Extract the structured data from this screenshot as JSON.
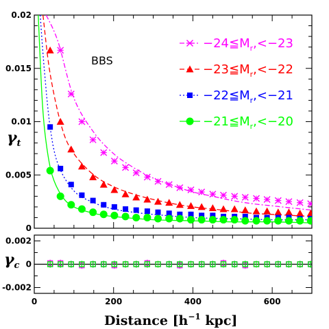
{
  "chart_data": [
    {
      "type": "line",
      "panel": "top",
      "ylabel": "γt",
      "annotation": "BBS",
      "xlim": [
        0,
        700
      ],
      "ylim": [
        0,
        0.02
      ],
      "x_ticks": [
        0,
        200,
        400,
        600
      ],
      "y_ticks": [
        0,
        0.005,
        0.01,
        0.015,
        0.02
      ],
      "y_tick_labels": [
        "0",
        "0.005",
        "0.01",
        "0.015",
        "0.02"
      ],
      "x": [
        40,
        66,
        93,
        120,
        148,
        175,
        202,
        230,
        257,
        285,
        312,
        340,
        367,
        395,
        422,
        450,
        477,
        505,
        532,
        560,
        587,
        615,
        642,
        670,
        697
      ],
      "series": [
        {
          "name": "−24≦Mr,<−23",
          "color": "#ff00ff",
          "marker": "x",
          "line": "dashdot",
          "values": [
            0.0205,
            0.0167,
            0.0126,
            0.01,
            0.0083,
            0.0071,
            0.0063,
            0.0057,
            0.0052,
            0.0048,
            0.0044,
            0.0041,
            0.0038,
            0.0036,
            0.0034,
            0.0032,
            0.0031,
            0.003,
            0.0029,
            0.0028,
            0.0027,
            0.0026,
            0.0025,
            0.0024,
            0.0023
          ],
          "model_points": [
            [
              30,
              0.02
            ],
            [
              60,
              0.0175
            ],
            [
              100,
              0.0122
            ],
            [
              150,
              0.009
            ],
            [
              200,
              0.007
            ],
            [
              250,
              0.0057
            ],
            [
              300,
              0.0047
            ],
            [
              350,
              0.004
            ],
            [
              400,
              0.0034
            ],
            [
              450,
              0.003
            ],
            [
              500,
              0.0026
            ],
            [
              550,
              0.0023
            ],
            [
              600,
              0.0021
            ],
            [
              650,
              0.0019
            ],
            [
              700,
              0.0017
            ]
          ]
        },
        {
          "name": "−23≦Mr,<−22",
          "color": "#ff0000",
          "marker": "triangle",
          "line": "dashed",
          "values": [
            0.0167,
            0.01,
            0.0074,
            0.0058,
            0.0048,
            0.0041,
            0.0036,
            0.0032,
            0.0029,
            0.0027,
            0.0025,
            0.0024,
            0.0022,
            0.0021,
            0.002,
            0.0019,
            0.0018,
            0.0018,
            0.0017,
            0.0016,
            0.0016,
            0.0015,
            0.0015,
            0.0014,
            0.0014
          ],
          "model_points": [
            [
              22,
              0.02
            ],
            [
              40,
              0.0145
            ],
            [
              70,
              0.0094
            ],
            [
              100,
              0.007
            ],
            [
              150,
              0.005
            ],
            [
              200,
              0.0039
            ],
            [
              250,
              0.0032
            ],
            [
              300,
              0.0027
            ],
            [
              350,
              0.0023
            ],
            [
              400,
              0.002
            ],
            [
              450,
              0.0018
            ],
            [
              500,
              0.0016
            ],
            [
              550,
              0.0014
            ],
            [
              600,
              0.0013
            ],
            [
              650,
              0.0012
            ],
            [
              700,
              0.0011
            ]
          ]
        },
        {
          "name": "−22≦Mr,<−21",
          "color": "#0000ff",
          "marker": "square",
          "line": "dotted",
          "values": [
            0.0095,
            0.0056,
            0.0041,
            0.0031,
            0.0026,
            0.0022,
            0.002,
            0.0018,
            0.0017,
            0.0016,
            0.0015,
            0.0014,
            0.0013,
            0.0013,
            0.0012,
            0.0012,
            0.0011,
            0.0011,
            0.0011,
            0.001,
            0.001,
            0.001,
            0.001,
            0.0009,
            0.0009
          ],
          "model_points": [
            [
              15,
              0.02
            ],
            [
              25,
              0.015
            ],
            [
              40,
              0.0095
            ],
            [
              60,
              0.006
            ],
            [
              100,
              0.0035
            ],
            [
              150,
              0.0024
            ],
            [
              200,
              0.0018
            ],
            [
              250,
              0.0015
            ],
            [
              300,
              0.0013
            ],
            [
              400,
              0.001
            ],
            [
              500,
              0.0009
            ],
            [
              600,
              0.0008
            ],
            [
              700,
              0.0008
            ]
          ]
        },
        {
          "name": "−21≦Mr,<−20",
          "color": "#00ff00",
          "marker": "circle",
          "line": "solid",
          "values": [
            0.0054,
            0.003,
            0.0022,
            0.0018,
            0.0015,
            0.0013,
            0.0012,
            0.0011,
            0.001,
            0.001,
            0.0009,
            0.0009,
            0.0009,
            0.0008,
            0.0008,
            0.0008,
            0.0008,
            0.0008,
            0.0007,
            0.0007,
            0.0007,
            0.0007,
            0.0007,
            0.0007,
            0.0007
          ],
          "model_points": [
            [
              10,
              0.02
            ],
            [
              20,
              0.012
            ],
            [
              30,
              0.008
            ],
            [
              45,
              0.005
            ],
            [
              70,
              0.003
            ],
            [
              100,
              0.002
            ],
            [
              150,
              0.0014
            ],
            [
              200,
              0.0011
            ],
            [
              300,
              0.0008
            ],
            [
              400,
              0.0007
            ],
            [
              500,
              0.0006
            ],
            [
              600,
              0.0006
            ],
            [
              700,
              0.0005
            ]
          ]
        }
      ]
    },
    {
      "type": "line",
      "panel": "bottom",
      "xlabel": "Distance [h−1 kpc]",
      "ylabel": "γc",
      "xlim": [
        0,
        700
      ],
      "ylim": [
        -0.0025,
        0.0025
      ],
      "x_ticks": [
        0,
        200,
        400,
        600
      ],
      "x_tick_labels": [
        "0",
        "200",
        "400",
        "600"
      ],
      "y_ticks": [
        -0.002,
        0,
        0.002
      ],
      "y_tick_labels": [
        "-0.002",
        "0",
        "0.002"
      ],
      "x": [
        40,
        66,
        93,
        120,
        148,
        175,
        202,
        230,
        257,
        285,
        312,
        340,
        367,
        395,
        422,
        450,
        477,
        505,
        532,
        560,
        587,
        615,
        642,
        670,
        697
      ],
      "series": [
        {
          "name": "−24≦Mr,<−23",
          "color": "#ff00ff",
          "marker": "open-square",
          "values": [
            0.0001,
            0.0001,
            0.0,
            -0.0001,
            0.0,
            0.0,
            -0.0001,
            0.0,
            0.0,
            0.0001,
            0.0,
            0.0,
            -0.0001,
            0.0,
            0.0,
            0.0,
            0.0001,
            0.0,
            -0.0001,
            0.0,
            0.0,
            0.0,
            0.0,
            0.0,
            0.0
          ]
        },
        {
          "name": "−23≦Mr,<−22",
          "color": "#ff0000",
          "marker": "open-square",
          "values": [
            0.0,
            0.0,
            0.0,
            0.0,
            0.0,
            0.0,
            0.0,
            0.0,
            0.0,
            0.0,
            0.0,
            0.0,
            0.0,
            0.0,
            0.0,
            0.0,
            0.0,
            0.0,
            0.0,
            0.0,
            0.0,
            0.0,
            0.0,
            0.0,
            0.0
          ]
        },
        {
          "name": "−22≦Mr,<−21",
          "color": "#0000ff",
          "marker": "open-square",
          "values": [
            0.0,
            0.0,
            0.0,
            0.0,
            0.0,
            0.0,
            0.0,
            0.0,
            0.0,
            0.0,
            0.0,
            0.0,
            0.0,
            0.0,
            0.0,
            0.0,
            0.0,
            0.0,
            0.0,
            0.0,
            0.0,
            0.0,
            0.0,
            0.0,
            0.0
          ]
        },
        {
          "name": "−21≦Mr,<−20",
          "color": "#00ff00",
          "marker": "open-square",
          "values": [
            0.0,
            0.0,
            0.0,
            0.0,
            0.0,
            0.0,
            0.0,
            0.0,
            0.0,
            0.0,
            0.0,
            0.0,
            0.0,
            0.0,
            0.0,
            0.0,
            0.0,
            0.0,
            0.0,
            0.0,
            0.0,
            0.0,
            0.0,
            0.0,
            0.0
          ]
        }
      ]
    }
  ],
  "legend": [
    {
      "prefix": "−24≦M",
      "sub": "r",
      "suffix": ",<−23",
      "color": "#ff00ff",
      "marker": "x"
    },
    {
      "prefix": "−23≦M",
      "sub": "r",
      "suffix": ",<−22",
      "color": "#ff0000",
      "marker": "triangle"
    },
    {
      "prefix": "−22≦M",
      "sub": "r",
      "suffix": ",<−21",
      "color": "#0000ff",
      "marker": "square"
    },
    {
      "prefix": "−21≦M",
      "sub": "r",
      "suffix": ",<−20",
      "color": "#00ff00",
      "marker": "circle"
    }
  ],
  "ylabel_top": {
    "main": "γ",
    "sub": "t"
  },
  "ylabel_bottom": {
    "main": "γ",
    "sub": "c"
  },
  "xlabel": {
    "main": "Distance [h",
    "sup": "−1",
    "rest": " kpc]"
  }
}
